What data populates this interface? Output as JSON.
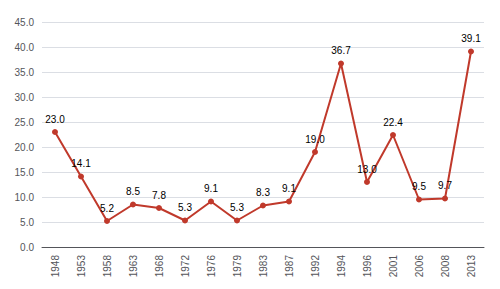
{
  "chart_data": {
    "type": "line",
    "categories": [
      "1948",
      "1953",
      "1958",
      "1963",
      "1968",
      "1972",
      "1976",
      "1979",
      "1983",
      "1987",
      "1992",
      "1994",
      "1996",
      "2001",
      "2006",
      "2008",
      "2013"
    ],
    "values": [
      23.0,
      14.1,
      5.2,
      8.5,
      7.8,
      5.3,
      9.1,
      5.3,
      8.3,
      9.1,
      19.0,
      36.7,
      13.0,
      22.4,
      9.5,
      9.7,
      39.1
    ],
    "value_labels": [
      "23.0",
      "14.1",
      "5.2",
      "8.5",
      "7.8",
      "5.3",
      "9.1",
      "5.3",
      "8.3",
      "9.1",
      "19.0",
      "36.7",
      "13.0",
      "22.4",
      "9.5",
      "9.7",
      "39.1"
    ],
    "color": "#c0392b",
    "marker": "circle",
    "ylim": [
      0,
      45
    ],
    "yticks": [
      {
        "value": 0,
        "label": "0.0"
      },
      {
        "value": 5,
        "label": "5.0"
      },
      {
        "value": 10,
        "label": "10.0"
      },
      {
        "value": 15,
        "label": "15.0"
      },
      {
        "value": 20,
        "label": "20.0"
      },
      {
        "value": 25,
        "label": "25.0"
      },
      {
        "value": 30,
        "label": "30.0"
      },
      {
        "value": 35,
        "label": "35.0"
      },
      {
        "value": 40,
        "label": "40.0"
      },
      {
        "value": 45,
        "label": "45.0"
      }
    ],
    "grid": true,
    "data_labels": true
  }
}
